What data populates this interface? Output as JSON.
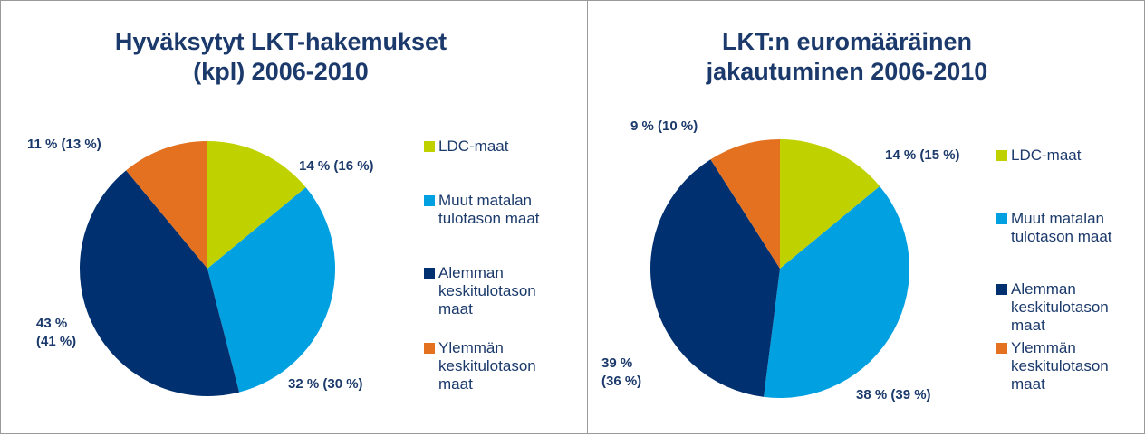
{
  "chart_data": [
    {
      "type": "pie",
      "title": "Hyväksytyt LKT-hakemukset (kpl) 2006-2010",
      "categories": [
        "LDC-maat",
        "Muut matalan tulotason maat",
        "Alemman keskitulotason maat",
        "Ylemmän keskitulotason maat"
      ],
      "values": [
        14,
        32,
        43,
        11
      ],
      "value_labels": [
        "14 % (16 %)",
        "32 % (30 %)",
        "43 % (41 %)",
        "11 % (13 %)"
      ],
      "colors": [
        "#bfd200",
        "#00a0e1",
        "#00306f",
        "#e3711f"
      ]
    },
    {
      "type": "pie",
      "title": "LKT:n euromääräinen jakautuminen 2006-2010",
      "categories": [
        "LDC-maat",
        "Muut matalan tulotason maat",
        "Alemman keskitulotason maat",
        "Ylemmän keskitulotason maat"
      ],
      "values": [
        14,
        38,
        39,
        9
      ],
      "value_labels": [
        "14 % (15 %)",
        "38 % (39 %)",
        "39 % (36 %)",
        "9 % (10 %)"
      ],
      "colors": [
        "#bfd200",
        "#00a0e1",
        "#00306f",
        "#e3711f"
      ]
    }
  ]
}
